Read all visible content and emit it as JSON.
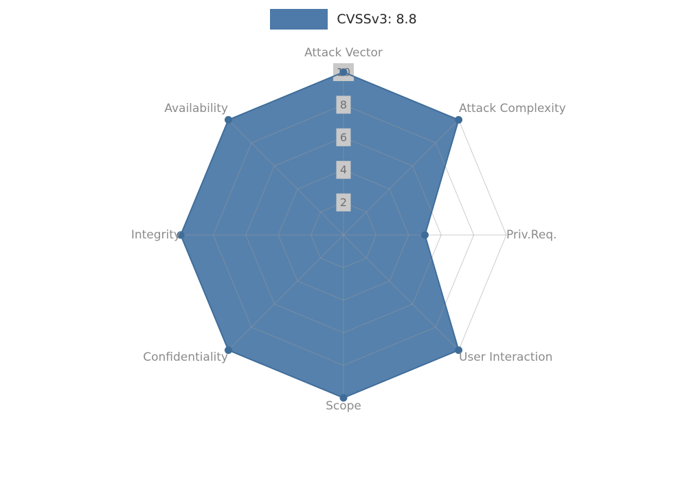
{
  "legend": {
    "label": "CVSSv3: 8.8",
    "swatch_color": "#4d7aa8"
  },
  "chart_data": {
    "type": "radar",
    "categories": [
      "Attack Vector",
      "Attack Complexity",
      "Priv.Req.",
      "User Interaction",
      "Scope",
      "Confidentiality",
      "Integrity",
      "Availability"
    ],
    "series": [
      {
        "name": "CVSSv3: 8.8",
        "values": [
          10,
          10,
          5,
          10,
          10,
          10,
          10,
          10
        ]
      }
    ],
    "ticks": [
      2,
      4,
      6,
      8,
      10
    ],
    "rlim": [
      0,
      10
    ],
    "grid": true,
    "legend_position": "top",
    "colors": {
      "fill": "#4d7aa8",
      "stroke": "#3f6d99",
      "marker": "#3f6d99",
      "grid": "#9a9a9a",
      "tick_label": "#6f6f6f",
      "tick_box": "#c9c9c9",
      "axis_label": "#8b8b8b"
    }
  }
}
